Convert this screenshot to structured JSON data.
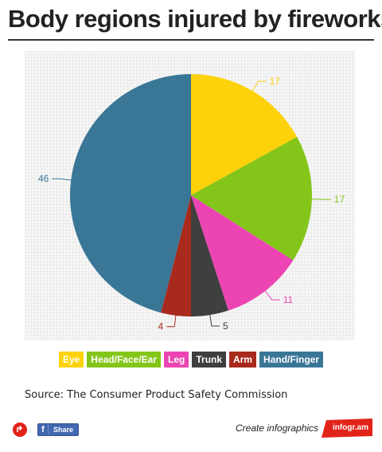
{
  "title": "Body regions injured by fireworks",
  "source": "Source: The Consumer Product Safety Commission",
  "footer": {
    "share_label": "Share",
    "fb_glyph": "f",
    "create_text": "Create infographics",
    "brand": "infogr.am"
  },
  "chart_data": {
    "type": "pie",
    "title": "Body regions injured by fireworks",
    "categories": [
      "Eye",
      "Head/Face/Ear",
      "Leg",
      "Trunk",
      "Arm",
      "Hand/Finger"
    ],
    "values": [
      17,
      17,
      11,
      5,
      4,
      46
    ],
    "colors": [
      "#fdd20a",
      "#84c51a",
      "#ec45b3",
      "#3f3f3f",
      "#a82a1c",
      "#3a7696"
    ],
    "legend_position": "bottom",
    "grid": true
  }
}
